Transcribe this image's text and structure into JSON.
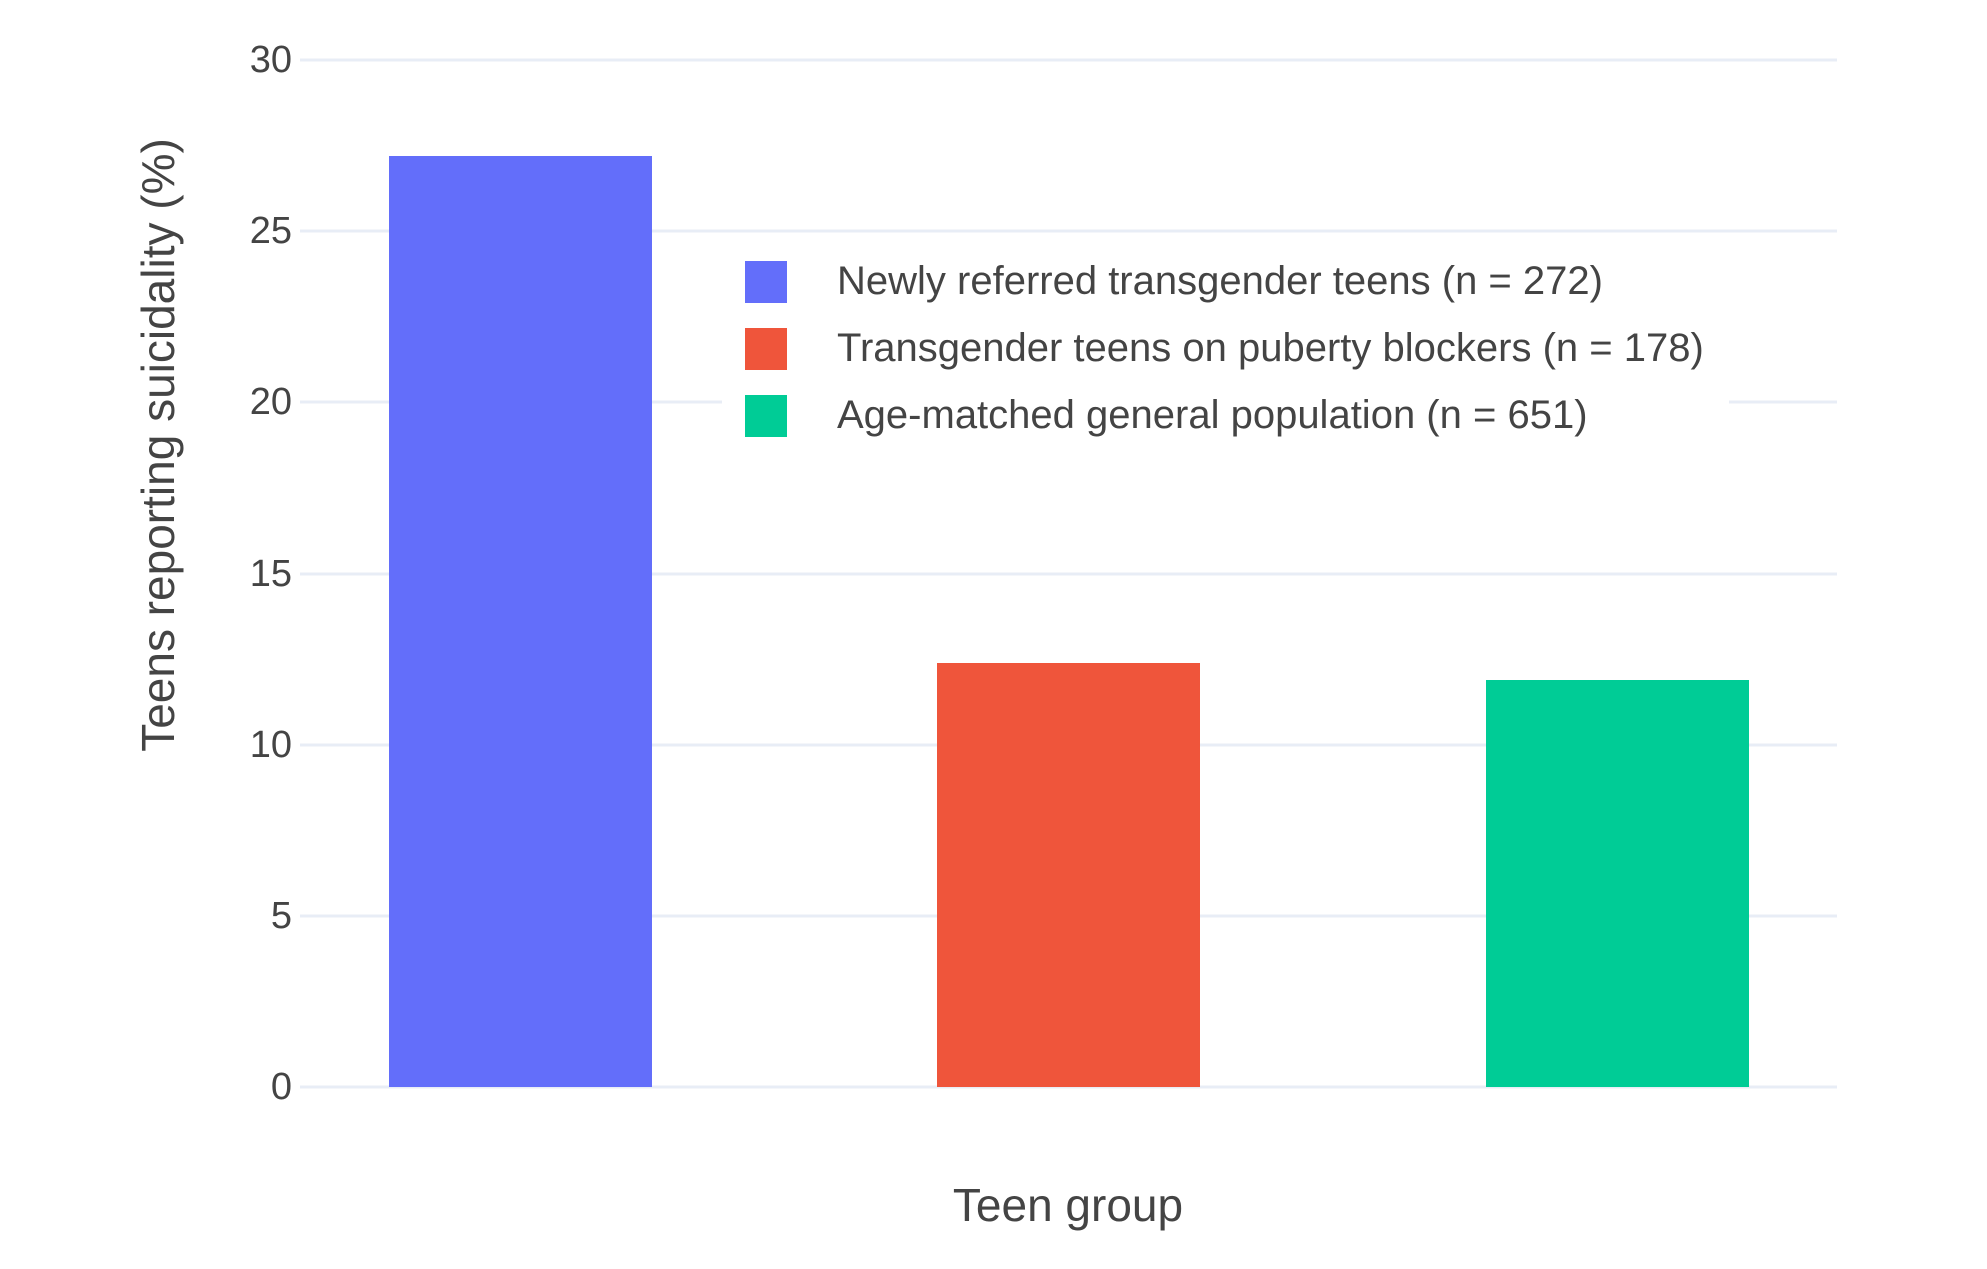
{
  "chart_data": {
    "type": "bar",
    "title": "",
    "xlabel": "Teen group",
    "ylabel": "Teens reporting suicidality (%)",
    "categories": [
      "Newly referred transgender teens",
      "Transgender teens on puberty blockers",
      "Age-matched general population"
    ],
    "values": [
      27.2,
      12.4,
      11.9
    ],
    "colors": [
      "#636EFA",
      "#EF553B",
      "#00CC96"
    ],
    "ylim": [
      0,
      30
    ],
    "yticks": [
      0,
      5,
      10,
      15,
      20,
      25,
      30
    ],
    "grid": true,
    "gridline_color": "#E8EDF6",
    "background_color": "#FFFFFF",
    "text_color": "#444444",
    "legend_position": "inside-top-center",
    "legend": [
      {
        "label": "Newly referred transgender teens (n = 272)",
        "n": 272
      },
      {
        "label": "Transgender teens on puberty blockers (n = 178)",
        "n": 178
      },
      {
        "label": "Age-matched general population (n = 651)",
        "n": 651
      }
    ]
  }
}
